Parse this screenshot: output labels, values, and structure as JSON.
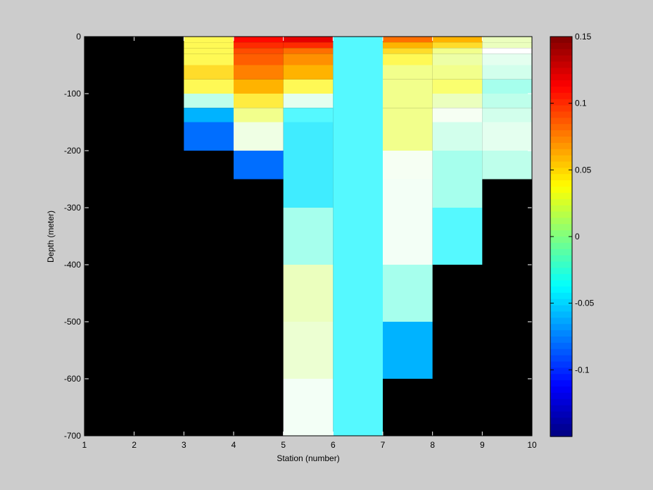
{
  "chart_data": [
    {
      "type": "heatmap",
      "xlabel": "Station (number)",
      "ylabel": "Depth (meter)",
      "xlim": [
        1,
        10
      ],
      "ylim": [
        -700,
        0
      ],
      "xticks": [
        1,
        2,
        3,
        4,
        5,
        6,
        7,
        8,
        9,
        10
      ],
      "yticks": [
        0,
        -100,
        -200,
        -300,
        -400,
        -500,
        -600,
        -700
      ],
      "missing_color": "#000000",
      "cells": [
        {
          "x0": 3,
          "x1": 4,
          "y0": 0,
          "y1": -10,
          "value": 0.04
        },
        {
          "x0": 3,
          "x1": 4,
          "y0": -10,
          "y1": -20,
          "value": 0.04
        },
        {
          "x0": 3,
          "x1": 4,
          "y0": -20,
          "y1": -30,
          "value": 0.04
        },
        {
          "x0": 3,
          "x1": 4,
          "y0": -30,
          "y1": -50,
          "value": 0.04
        },
        {
          "x0": 3,
          "x1": 4,
          "y0": -50,
          "y1": -75,
          "value": 0.05
        },
        {
          "x0": 3,
          "x1": 4,
          "y0": -75,
          "y1": -100,
          "value": 0.04
        },
        {
          "x0": 3,
          "x1": 4,
          "y0": -100,
          "y1": -125,
          "value": -0.02
        },
        {
          "x0": 3,
          "x1": 4,
          "y0": -125,
          "y1": -150,
          "value": -0.06
        },
        {
          "x0": 3,
          "x1": 4,
          "y0": -150,
          "y1": -200,
          "value": -0.08
        },
        {
          "x0": 4,
          "x1": 5,
          "y0": 0,
          "y1": -10,
          "value": 0.11
        },
        {
          "x0": 4,
          "x1": 5,
          "y0": -10,
          "y1": -20,
          "value": 0.1
        },
        {
          "x0": 4,
          "x1": 5,
          "y0": -20,
          "y1": -30,
          "value": 0.09
        },
        {
          "x0": 4,
          "x1": 5,
          "y0": -30,
          "y1": -50,
          "value": 0.085
        },
        {
          "x0": 4,
          "x1": 5,
          "y0": -50,
          "y1": -75,
          "value": 0.075
        },
        {
          "x0": 4,
          "x1": 5,
          "y0": -75,
          "y1": -100,
          "value": 0.06
        },
        {
          "x0": 4,
          "x1": 5,
          "y0": -100,
          "y1": -125,
          "value": 0.045
        },
        {
          "x0": 4,
          "x1": 5,
          "y0": -125,
          "y1": -150,
          "value": 0.03
        },
        {
          "x0": 4,
          "x1": 5,
          "y0": -150,
          "y1": -200,
          "value": 0.01
        },
        {
          "x0": 4,
          "x1": 5,
          "y0": -200,
          "y1": -250,
          "value": -0.08
        },
        {
          "x0": 5,
          "x1": 6,
          "y0": 0,
          "y1": -10,
          "value": 0.12
        },
        {
          "x0": 5,
          "x1": 6,
          "y0": -10,
          "y1": -20,
          "value": 0.1
        },
        {
          "x0": 5,
          "x1": 6,
          "y0": -20,
          "y1": -30,
          "value": 0.08
        },
        {
          "x0": 5,
          "x1": 6,
          "y0": -30,
          "y1": -50,
          "value": 0.07
        },
        {
          "x0": 5,
          "x1": 6,
          "y0": -50,
          "y1": -75,
          "value": 0.06
        },
        {
          "x0": 5,
          "x1": 6,
          "y0": -75,
          "y1": -100,
          "value": 0.04
        },
        {
          "x0": 5,
          "x1": 6,
          "y0": -100,
          "y1": -125,
          "value": -0.01
        },
        {
          "x0": 5,
          "x1": 6,
          "y0": -125,
          "y1": -150,
          "value": -0.04
        },
        {
          "x0": 5,
          "x1": 6,
          "y0": -150,
          "y1": -200,
          "value": -0.045
        },
        {
          "x0": 5,
          "x1": 6,
          "y0": -200,
          "y1": -250,
          "value": -0.045
        },
        {
          "x0": 5,
          "x1": 6,
          "y0": -250,
          "y1": -300,
          "value": -0.045
        },
        {
          "x0": 5,
          "x1": 6,
          "y0": -300,
          "y1": -400,
          "value": -0.025
        },
        {
          "x0": 5,
          "x1": 6,
          "y0": -400,
          "y1": -500,
          "value": 0.02
        },
        {
          "x0": 5,
          "x1": 6,
          "y0": -500,
          "y1": -600,
          "value": 0.015
        },
        {
          "x0": 5,
          "x1": 6,
          "y0": -600,
          "y1": -700,
          "value": -0.005
        },
        {
          "x0": 6,
          "x1": 7,
          "y0": 0,
          "y1": -700,
          "value": -0.04
        },
        {
          "x0": 7,
          "x1": 8,
          "y0": 0,
          "y1": -10,
          "value": 0.08
        },
        {
          "x0": 7,
          "x1": 8,
          "y0": -10,
          "y1": -20,
          "value": 0.06
        },
        {
          "x0": 7,
          "x1": 8,
          "y0": -20,
          "y1": -30,
          "value": 0.05
        },
        {
          "x0": 7,
          "x1": 8,
          "y0": -30,
          "y1": -50,
          "value": 0.04
        },
        {
          "x0": 7,
          "x1": 8,
          "y0": -50,
          "y1": -75,
          "value": 0.03
        },
        {
          "x0": 7,
          "x1": 8,
          "y0": -75,
          "y1": -100,
          "value": 0.03
        },
        {
          "x0": 7,
          "x1": 8,
          "y0": -100,
          "y1": -125,
          "value": 0.03
        },
        {
          "x0": 7,
          "x1": 8,
          "y0": -125,
          "y1": -150,
          "value": 0.03
        },
        {
          "x0": 7,
          "x1": 8,
          "y0": -150,
          "y1": -200,
          "value": 0.03
        },
        {
          "x0": 7,
          "x1": 8,
          "y0": -200,
          "y1": -250,
          "value": 0.005
        },
        {
          "x0": 7,
          "x1": 8,
          "y0": -250,
          "y1": -300,
          "value": -0.005
        },
        {
          "x0": 7,
          "x1": 8,
          "y0": -300,
          "y1": -400,
          "value": -0.005
        },
        {
          "x0": 7,
          "x1": 8,
          "y0": -400,
          "y1": -500,
          "value": -0.025
        },
        {
          "x0": 7,
          "x1": 8,
          "y0": -500,
          "y1": -600,
          "value": -0.06
        },
        {
          "x0": 8,
          "x1": 9,
          "y0": 0,
          "y1": -10,
          "value": 0.06
        },
        {
          "x0": 8,
          "x1": 9,
          "y0": -10,
          "y1": -20,
          "value": 0.05
        },
        {
          "x0": 8,
          "x1": 9,
          "y0": -20,
          "y1": -30,
          "value": 0.03
        },
        {
          "x0": 8,
          "x1": 9,
          "y0": -30,
          "y1": -50,
          "value": 0.025
        },
        {
          "x0": 8,
          "x1": 9,
          "y0": -50,
          "y1": -75,
          "value": 0.03
        },
        {
          "x0": 8,
          "x1": 9,
          "y0": -75,
          "y1": -100,
          "value": 0.035
        },
        {
          "x0": 8,
          "x1": 9,
          "y0": -100,
          "y1": -125,
          "value": 0.02
        },
        {
          "x0": 8,
          "x1": 9,
          "y0": -125,
          "y1": -150,
          "value": 0.005
        },
        {
          "x0": 8,
          "x1": 9,
          "y0": -150,
          "y1": -200,
          "value": -0.015
        },
        {
          "x0": 8,
          "x1": 9,
          "y0": -200,
          "y1": -250,
          "value": -0.025
        },
        {
          "x0": 8,
          "x1": 9,
          "y0": -250,
          "y1": -300,
          "value": -0.025
        },
        {
          "x0": 8,
          "x1": 9,
          "y0": -300,
          "y1": -400,
          "value": -0.04
        },
        {
          "x0": 9,
          "x1": 10,
          "y0": 0,
          "y1": -10,
          "value": 0.02
        },
        {
          "x0": 9,
          "x1": 10,
          "y0": -10,
          "y1": -20,
          "value": 0.02
        },
        {
          "x0": 9,
          "x1": 10,
          "y0": -20,
          "y1": -30,
          "value": 0.0
        },
        {
          "x0": 9,
          "x1": 10,
          "y0": -30,
          "y1": -50,
          "value": -0.01
        },
        {
          "x0": 9,
          "x1": 10,
          "y0": -50,
          "y1": -75,
          "value": -0.015
        },
        {
          "x0": 9,
          "x1": 10,
          "y0": -75,
          "y1": -100,
          "value": -0.025
        },
        {
          "x0": 9,
          "x1": 10,
          "y0": -100,
          "y1": -125,
          "value": -0.02
        },
        {
          "x0": 9,
          "x1": 10,
          "y0": -125,
          "y1": -150,
          "value": -0.015
        },
        {
          "x0": 9,
          "x1": 10,
          "y0": -150,
          "y1": -200,
          "value": -0.01
        },
        {
          "x0": 9,
          "x1": 10,
          "y0": -200,
          "y1": -250,
          "value": -0.02
        }
      ]
    },
    {
      "type": "colorbar",
      "clim": [
        -0.15,
        0.15
      ],
      "colormap": "jet",
      "levels": 64,
      "ticks": [
        0.15,
        0.1,
        0.05,
        0,
        -0.05,
        -0.1
      ]
    }
  ]
}
